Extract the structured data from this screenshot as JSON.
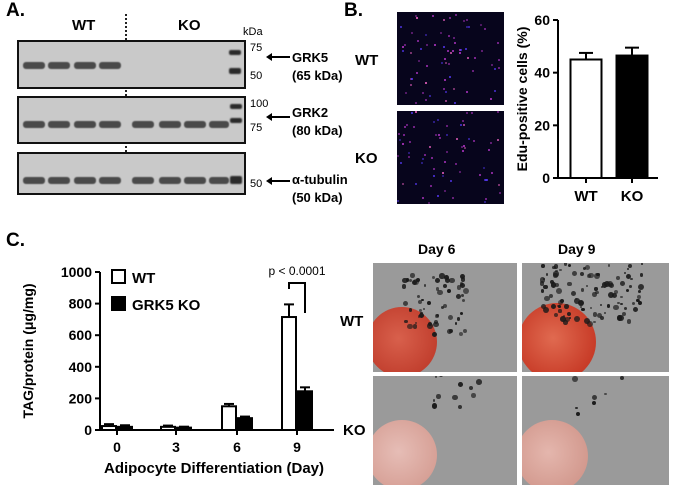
{
  "panel_a": {
    "letter": "A.",
    "group_wt": "WT",
    "group_ko": "KO",
    "kda_header": "kDa",
    "blots": [
      {
        "name": "GRK5",
        "size": "(65 kDa)",
        "markers": [
          "75",
          "50"
        ]
      },
      {
        "name": "GRK2",
        "size": "(80 kDa)",
        "markers": [
          "100",
          "75"
        ]
      },
      {
        "name": "α-tubulin",
        "size": "(50 kDa)",
        "markers": [
          "50"
        ]
      }
    ]
  },
  "panel_b": {
    "letter": "B.",
    "row_labels": [
      "WT",
      "KO"
    ],
    "chart_data": {
      "type": "bar",
      "categories": [
        "WT",
        "KO"
      ],
      "values": [
        45,
        46.5
      ],
      "errors": [
        2.5,
        3
      ],
      "bar_fills": [
        "#ffffff",
        "#000000"
      ],
      "ylabel": "Edu-positive cells (%)",
      "ylim": [
        0,
        60
      ],
      "yticks": [
        0,
        20,
        40,
        60
      ]
    }
  },
  "panel_c": {
    "letter": "C.",
    "chart_data": {
      "type": "bar",
      "categories": [
        "0",
        "3",
        "6",
        "9"
      ],
      "series": [
        {
          "name": "WT",
          "values": [
            25,
            20,
            150,
            715
          ],
          "errors": [
            12,
            8,
            15,
            80
          ],
          "fill": "#ffffff"
        },
        {
          "name": "GRK5 KO",
          "values": [
            20,
            15,
            75,
            245
          ],
          "errors": [
            10,
            6,
            10,
            25
          ],
          "fill": "#000000"
        }
      ],
      "xlabel": "Adipocyte Differentiation (Day)",
      "ylabel": "TAG/protein (μg/mg)",
      "ylim": [
        0,
        1000
      ],
      "yticks": [
        0,
        200,
        400,
        600,
        800,
        1000
      ],
      "annotation": "p < 0.0001"
    },
    "image_columns": [
      "Day 6",
      "Day 9"
    ],
    "image_rows": [
      "WT",
      "KO"
    ],
    "colors": {
      "oil_red": "#c94a3a"
    }
  }
}
